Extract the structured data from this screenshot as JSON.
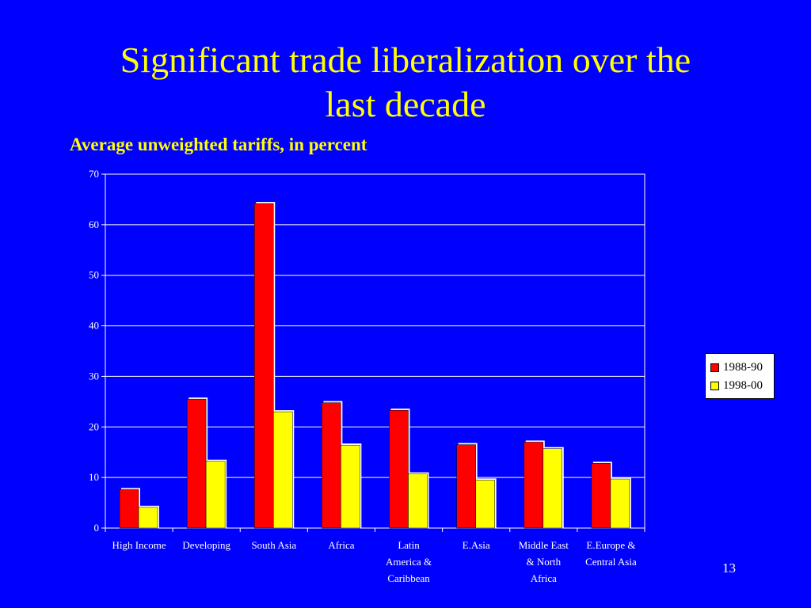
{
  "slide": {
    "title_line1": "Significant trade liberalization over the",
    "title_line2": "last decade",
    "page_number": "13"
  },
  "colors": {
    "background": "#0000FF",
    "title": "#FFFF00",
    "series_1988": "#FF0000",
    "series_1998": "#FFFF00"
  },
  "chart_data": {
    "type": "bar",
    "title": "Average unweighted tariffs, in percent",
    "xlabel": "",
    "ylabel": "",
    "ylim": [
      0,
      70
    ],
    "yticks": [
      0,
      10,
      20,
      30,
      40,
      50,
      60,
      70
    ],
    "grid": true,
    "legend_position": "right",
    "categories": [
      [
        "High Income"
      ],
      [
        "Developing"
      ],
      [
        "South Asia"
      ],
      [
        "Africa"
      ],
      [
        "Latin",
        "America &",
        "Caribbean"
      ],
      [
        "E.Asia"
      ],
      [
        "Middle East",
        "& North",
        "Africa"
      ],
      [
        "E.Europe &",
        "Central Asia"
      ]
    ],
    "series": [
      {
        "name": "1988-90",
        "values": [
          7.6,
          25.5,
          64.2,
          24.8,
          23.3,
          16.5,
          17.0,
          12.8
        ]
      },
      {
        "name": "1998-00",
        "values": [
          4.1,
          13.2,
          23.0,
          16.4,
          10.7,
          9.5,
          15.7,
          9.7
        ]
      }
    ]
  }
}
